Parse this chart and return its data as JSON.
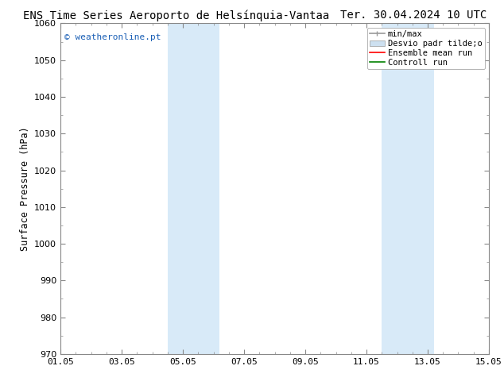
{
  "title_left": "ENS Time Series Aeroporto de Helsínquia-Vantaa",
  "title_right": "Ter. 30.04.2024 10 UTC",
  "ylabel": "Surface Pressure (hPa)",
  "ylim": [
    970,
    1060
  ],
  "yticks": [
    970,
    980,
    990,
    1000,
    1010,
    1020,
    1030,
    1040,
    1050,
    1060
  ],
  "xlim": [
    0,
    14
  ],
  "xticks": [
    "01.05",
    "03.05",
    "05.05",
    "07.05",
    "09.05",
    "11.05",
    "13.05",
    "15.05"
  ],
  "xtick_positions": [
    0,
    2,
    4,
    6,
    8,
    10,
    12,
    14
  ],
  "shaded_bands": [
    {
      "x_start": 3.5,
      "x_end": 5.2,
      "color": "#d8eaf8"
    },
    {
      "x_start": 10.5,
      "x_end": 12.2,
      "color": "#d8eaf8"
    }
  ],
  "watermark_text": "© weatheronline.pt",
  "watermark_color": "#1a5fb5",
  "legend_labels": [
    "min/max",
    "Desvio padr tilde;o",
    "Ensemble mean run",
    "Controll run"
  ],
  "legend_colors": [
    "#aaaaaa",
    "#cde0f0",
    "red",
    "green"
  ],
  "background_color": "#ffffff",
  "spine_color": "#888888",
  "tick_color": "#444444",
  "title_fontsize": 10,
  "axis_label_fontsize": 8.5,
  "tick_fontsize": 8,
  "legend_fontsize": 7.5
}
